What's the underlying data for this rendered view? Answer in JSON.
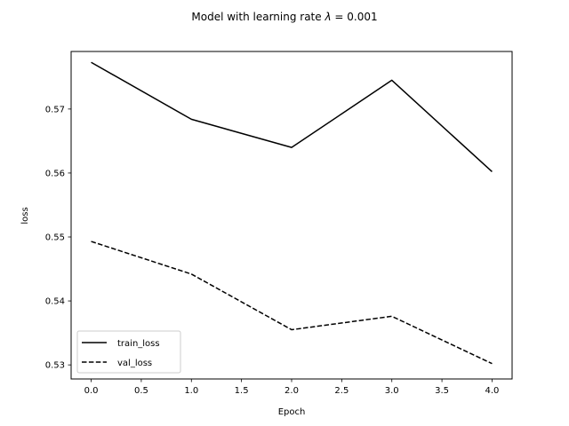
{
  "chart_data": {
    "type": "line",
    "title": "Model with learning rate λ = 0.001",
    "title_parts": {
      "prefix": "Model with learning rate ",
      "symbol": "λ",
      "suffix": " = 0.001"
    },
    "xlabel": "Epoch",
    "ylabel": "loss",
    "x": [
      0,
      1,
      2,
      3,
      4
    ],
    "xlim": [
      -0.2,
      4.2
    ],
    "ylim": [
      0.5278,
      0.579
    ],
    "xticks": [
      0.0,
      0.5,
      1.0,
      1.5,
      2.0,
      2.5,
      3.0,
      3.5,
      4.0
    ],
    "xtick_labels": [
      "0.0",
      "0.5",
      "1.0",
      "1.5",
      "2.0",
      "2.5",
      "3.0",
      "3.5",
      "4.0"
    ],
    "yticks": [
      0.53,
      0.54,
      0.55,
      0.56,
      0.57
    ],
    "ytick_labels": [
      "0.53",
      "0.54",
      "0.55",
      "0.56",
      "0.57"
    ],
    "grid": false,
    "legend_position": "lower-left",
    "series": [
      {
        "name": "train_loss",
        "values": [
          0.5773,
          0.5684,
          0.564,
          0.5745,
          0.5602
        ],
        "style": "solid",
        "color": "#000000"
      },
      {
        "name": "val_loss",
        "values": [
          0.5493,
          0.5442,
          0.5355,
          0.5376,
          0.5302
        ],
        "style": "dashed",
        "color": "#000000"
      }
    ]
  }
}
